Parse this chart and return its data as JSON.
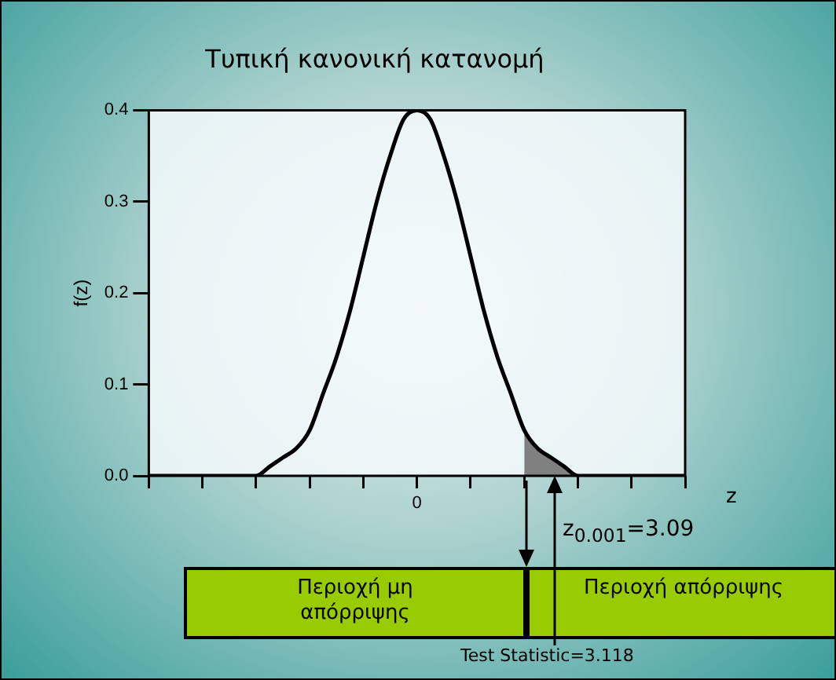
{
  "chart_data": {
    "type": "line",
    "title": "Τυπική κανονική κατανομή",
    "xlabel": "z",
    "ylabel": "f(z)",
    "categories": [
      null,
      null,
      null,
      null,
      null,
      null,
      null,
      null,
      null,
      null,
      null,
      null,
      null,
      null,
      null,
      null,
      null,
      null,
      null,
      null,
      "0",
      null,
      null,
      null,
      null,
      null,
      null,
      null,
      null,
      null,
      null,
      null,
      null,
      null,
      null,
      null,
      null,
      null,
      null,
      null,
      null
    ],
    "series": [
      {
        "color": "#000000",
        "values": [
          0,
          0,
          0,
          0,
          0,
          0,
          0,
          0,
          0,
          0.01,
          0.02,
          0.03,
          0.05,
          0.09,
          0.13,
          0.18,
          0.24,
          0.3,
          0.35,
          0.39,
          0.4,
          0.39,
          0.35,
          0.3,
          0.24,
          0.18,
          0.13,
          0.09,
          0.05,
          0.03,
          0.02,
          0.01,
          0,
          0,
          0,
          0,
          0,
          0,
          0,
          0,
          0
        ]
      },
      {
        "type": "area",
        "color": "#808080",
        "values": [
          null,
          null,
          null,
          null,
          null,
          null,
          null,
          null,
          null,
          null,
          null,
          null,
          null,
          null,
          null,
          null,
          null,
          null,
          null,
          null,
          null,
          null,
          null,
          null,
          null,
          null,
          null,
          null,
          0.05,
          0.03,
          0.02,
          0.01,
          0,
          null,
          null,
          null,
          null,
          null,
          null,
          null,
          null
        ]
      }
    ],
    "ylim": [
      0,
      0.4
    ],
    "yticks": [
      {
        "value": 0,
        "label": "0.0"
      },
      0.1,
      0.2,
      0.3,
      0.4
    ],
    "grid": false,
    "legend": false,
    "marker": "none",
    "line_style": "solid",
    "annotations": [
      "z$_{0.001}$=3.09",
      "Περιοχή μη απόρριψης",
      "Περιοχή απόρριψης",
      "Test Statistic=3.118"
    ]
  }
}
